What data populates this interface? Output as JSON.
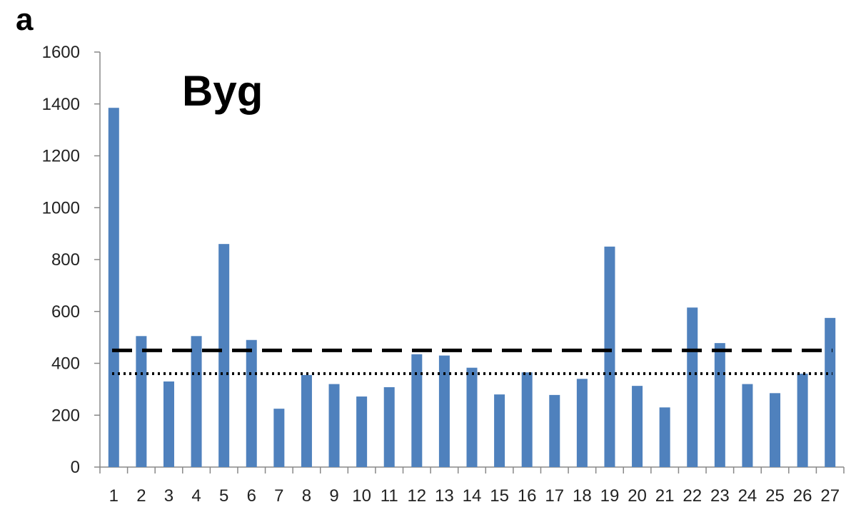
{
  "chart_data": {
    "type": "bar",
    "panel_label": "a",
    "title": "Byg",
    "categories": [
      "1",
      "2",
      "3",
      "4",
      "5",
      "6",
      "7",
      "8",
      "9",
      "10",
      "11",
      "12",
      "13",
      "14",
      "15",
      "16",
      "17",
      "18",
      "19",
      "20",
      "21",
      "22",
      "23",
      "24",
      "25",
      "26",
      "27"
    ],
    "values": [
      1385,
      505,
      330,
      505,
      860,
      490,
      225,
      355,
      320,
      272,
      308,
      435,
      430,
      383,
      280,
      365,
      278,
      340,
      850,
      313,
      230,
      615,
      478,
      320,
      285,
      360,
      575
    ],
    "ylim": [
      0,
      1600
    ],
    "yticks": [
      0,
      200,
      400,
      600,
      800,
      1000,
      1200,
      1400,
      1600
    ],
    "reference_lines": [
      {
        "style": "dashed",
        "value": 450
      },
      {
        "style": "dotted",
        "value": 360
      }
    ],
    "bar_color": "#4f81bd",
    "grid": false,
    "xlabel": "",
    "ylabel": ""
  }
}
